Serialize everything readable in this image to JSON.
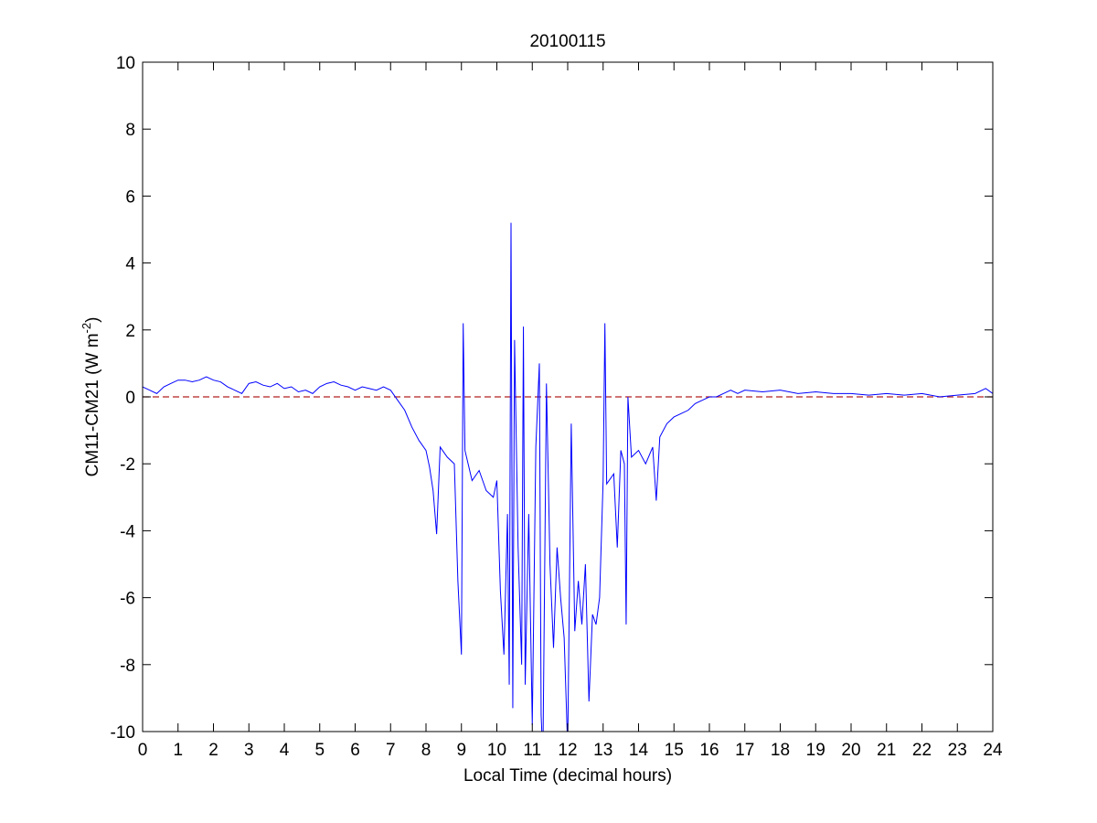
{
  "chart_data": {
    "type": "line",
    "title": "20100115",
    "x_label": "Local Time (decimal hours)",
    "y_label": "CM11-CM21 (W m",
    "y_label_superscript": "-2",
    "y_label_end": ")",
    "xlim": [
      0,
      24
    ],
    "ylim": [
      -10,
      10
    ],
    "xticks": [
      0,
      1,
      2,
      3,
      4,
      5,
      6,
      7,
      8,
      9,
      10,
      11,
      12,
      13,
      14,
      15,
      16,
      17,
      18,
      19,
      20,
      21,
      22,
      23,
      24
    ],
    "yticks": [
      -10,
      -8,
      -6,
      -4,
      -2,
      0,
      2,
      4,
      6,
      8,
      10
    ],
    "reference_line": {
      "value": 0,
      "color": "#b22222",
      "style": "dashed"
    },
    "x": [
      0,
      0.2,
      0.4,
      0.6,
      0.8,
      1.0,
      1.2,
      1.4,
      1.6,
      1.8,
      2.0,
      2.2,
      2.4,
      2.6,
      2.8,
      3.0,
      3.2,
      3.4,
      3.6,
      3.8,
      4.0,
      4.2,
      4.4,
      4.6,
      4.8,
      5.0,
      5.2,
      5.4,
      5.6,
      5.8,
      6.0,
      6.2,
      6.4,
      6.6,
      6.8,
      7.0,
      7.2,
      7.4,
      7.6,
      7.8,
      8.0,
      8.1,
      8.2,
      8.3,
      8.4,
      8.6,
      8.8,
      8.9,
      9.0,
      9.05,
      9.1,
      9.3,
      9.5,
      9.7,
      9.9,
      10.0,
      10.1,
      10.2,
      10.3,
      10.35,
      10.4,
      10.45,
      10.5,
      10.6,
      10.7,
      10.75,
      10.8,
      10.9,
      11.0,
      11.1,
      11.2,
      11.25,
      11.3,
      11.4,
      11.5,
      11.6,
      11.7,
      11.8,
      11.9,
      12.0,
      12.1,
      12.2,
      12.3,
      12.4,
      12.5,
      12.6,
      12.7,
      12.8,
      12.9,
      13.0,
      13.05,
      13.1,
      13.3,
      13.4,
      13.5,
      13.6,
      13.65,
      13.7,
      13.8,
      14.0,
      14.2,
      14.4,
      14.5,
      14.6,
      14.8,
      15.0,
      15.2,
      15.4,
      15.6,
      15.8,
      16.0,
      16.2,
      16.4,
      16.6,
      16.8,
      17.0,
      17.5,
      18.0,
      18.5,
      19.0,
      19.5,
      20.0,
      20.5,
      21.0,
      21.5,
      22.0,
      22.5,
      23.0,
      23.5,
      23.8,
      24.0
    ],
    "series": [
      {
        "name": "CM11-CM21",
        "color": "#0000ff",
        "values": [
          0.3,
          0.2,
          0.1,
          0.3,
          0.4,
          0.5,
          0.5,
          0.45,
          0.5,
          0.6,
          0.5,
          0.45,
          0.3,
          0.2,
          0.1,
          0.4,
          0.45,
          0.35,
          0.3,
          0.4,
          0.25,
          0.3,
          0.15,
          0.2,
          0.1,
          0.3,
          0.4,
          0.45,
          0.35,
          0.3,
          0.2,
          0.3,
          0.25,
          0.2,
          0.3,
          0.2,
          -0.1,
          -0.4,
          -0.9,
          -1.3,
          -1.6,
          -2.1,
          -2.8,
          -4.1,
          -1.5,
          -1.8,
          -2.0,
          -5.5,
          -7.7,
          2.2,
          -1.6,
          -2.5,
          -2.2,
          -2.8,
          -3.0,
          -2.5,
          -5.8,
          -7.7,
          -3.5,
          -8.6,
          5.2,
          -9.3,
          1.7,
          -4.5,
          -8.0,
          2.1,
          -8.6,
          -3.5,
          -9.8,
          -1.5,
          1.0,
          -9.5,
          -10.8,
          0.4,
          -5.0,
          -7.5,
          -4.5,
          -6.0,
          -7.2,
          -10.5,
          -0.8,
          -7.0,
          -5.5,
          -6.8,
          -5.0,
          -9.1,
          -6.5,
          -6.8,
          -6.0,
          -2.5,
          2.2,
          -2.6,
          -2.3,
          -4.5,
          -1.6,
          -2.0,
          -6.8,
          0.0,
          -1.8,
          -1.6,
          -2.0,
          -1.5,
          -3.1,
          -1.2,
          -0.8,
          -0.6,
          -0.5,
          -0.4,
          -0.2,
          -0.1,
          0.0,
          0.0,
          0.1,
          0.2,
          0.1,
          0.2,
          0.15,
          0.2,
          0.1,
          0.15,
          0.1,
          0.1,
          0.05,
          0.1,
          0.05,
          0.1,
          0.0,
          0.05,
          0.1,
          0.25,
          0.1
        ]
      }
    ]
  }
}
